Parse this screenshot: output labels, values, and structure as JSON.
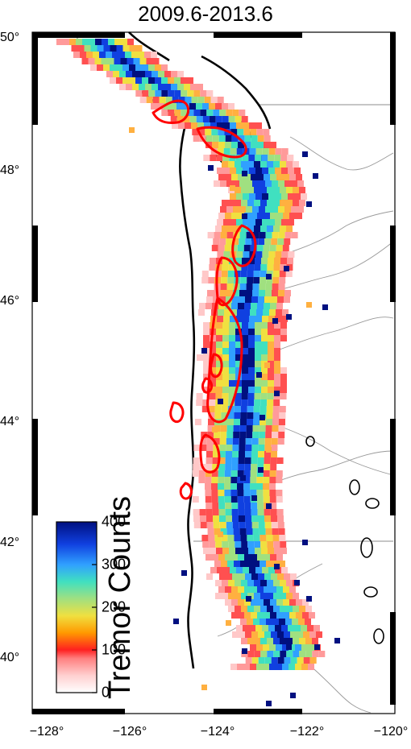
{
  "title": "2009.6-2013.6",
  "latitude_labels": [
    "50°",
    "48°",
    "46°",
    "44°",
    "42°",
    "40°"
  ],
  "longitude_labels": [
    "−128°",
    "−126°",
    "−124°",
    "−122°",
    "−120°"
  ],
  "colorbar": {
    "title": "Tremor Counts",
    "tick_labels": [
      "400",
      "300",
      "200",
      "100",
      "0"
    ],
    "range": [
      0,
      400
    ],
    "colors": [
      "#ffffff",
      "#ffd0d0",
      "#ff8080",
      "#ff2020",
      "#ff9900",
      "#f0e040",
      "#a0e080",
      "#40e0c0",
      "#30a0ff",
      "#1040e0",
      "#001080"
    ]
  },
  "map": {
    "land_color": "#ffffff",
    "coastline_color": "#000000",
    "river_color": "#999999",
    "contour_color": "#ff0000"
  }
}
